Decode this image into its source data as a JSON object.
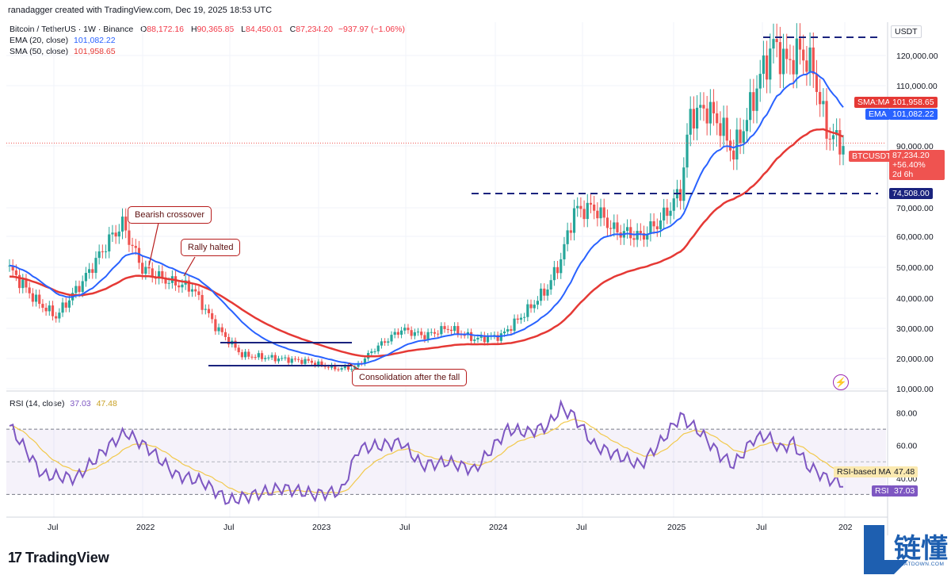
{
  "header": {
    "created_by": "ranadagger created with TradingView.com, Dec 19, 2025 18:53 UTC",
    "symbol_line": "Bitcoin / TetherUS · 1W · Binance",
    "ohlc": {
      "o_label": "O",
      "o": "88,172.16",
      "h_label": "H",
      "h": "90,365.85",
      "l_label": "L",
      "l": "84,450.01",
      "c_label": "C",
      "c": "87,234.20",
      "change": "−937.97 (−1.06%)"
    },
    "ema_line": {
      "label": "EMA (20, close)",
      "value": "101,082.22"
    },
    "sma_line": {
      "label": "SMA (50, close)",
      "value": "101,958.65"
    }
  },
  "rsi_legend": {
    "label": "RSI (14, close)",
    "rsi": "37.03",
    "ma": "47.48"
  },
  "axis": {
    "currency": "USDT",
    "price_ticks": [
      "120,000.00",
      "110,000.00",
      "90,000.00",
      "70,000.00",
      "60,000.00",
      "50,000.00",
      "40,000.00",
      "30,000.00",
      "20,000.00",
      "10,000.00"
    ],
    "rsi_ticks": [
      "80.00",
      "60.00",
      "40.00"
    ],
    "time_labels": [
      "Jul",
      "2022",
      "Jul",
      "2023",
      "Jul",
      "2024",
      "Jul",
      "2025",
      "Jul",
      "202"
    ]
  },
  "price_tags": {
    "sma": {
      "name": "SMA:MA",
      "value": "101,958.65"
    },
    "ema": {
      "name": "EMA",
      "value": "101,082.22"
    },
    "btc": {
      "name": "BTCUSDT",
      "value": "87,234.20",
      "change": "+56.40%",
      "countdown": "2d 6h"
    },
    "level": {
      "value": "74,508.00"
    },
    "rsi_ma": {
      "name": "RSI-based MA",
      "value": "47.48"
    },
    "rsi": {
      "name": "RSI",
      "value": "37.03"
    }
  },
  "annotations": {
    "bearish": "Bearish crossover",
    "rally": "Rally halted",
    "consolidation": "Consolidation after the fall"
  },
  "footer": {
    "brand": "TradingView",
    "watermark": "链懂",
    "watermark_sub": "NEATDOWN.COM"
  },
  "colors": {
    "up": "#26a69a",
    "down": "#ef5350",
    "ema": "#2962ff",
    "sma": "#e53935",
    "rsi": "#7e57c2",
    "rsi_ma": "#f2c94c",
    "level": "#1a237e"
  },
  "chart_data": {
    "type": "line",
    "series": [
      {
        "name": "EMA (20, close)",
        "x": [
          "2021-07",
          "2022-01",
          "2022-07",
          "2023-01",
          "2023-07",
          "2024-01",
          "2024-07",
          "2025-01",
          "2025-07",
          "2025-12"
        ],
        "values": [
          40000,
          54000,
          32000,
          19000,
          27000,
          32000,
          60000,
          88000,
          111000,
          101082
        ]
      },
      {
        "name": "SMA (50, close)",
        "x": [
          "2021-07",
          "2022-01",
          "2022-07",
          "2023-01",
          "2023-07",
          "2024-01",
          "2024-07",
          "2025-01",
          "2025-07",
          "2025-12"
        ],
        "values": [
          28000,
          44000,
          42000,
          24000,
          23000,
          30000,
          47000,
          74000,
          99000,
          101959
        ]
      },
      {
        "name": "RSI (14, close)",
        "x": [
          "2021-07",
          "2022-01",
          "2022-07",
          "2023-01",
          "2023-07",
          "2024-01",
          "2024-07",
          "2025-01",
          "2025-07",
          "2025-12"
        ],
        "values": [
          45,
          62,
          30,
          34,
          58,
          68,
          50,
          68,
          70,
          37
        ]
      }
    ],
    "price_ylim": [
      10000,
      125000
    ],
    "rsi_ylim": [
      20,
      90
    ],
    "levels": [
      {
        "label": "74,508.00",
        "value": 74508
      },
      {
        "value": 126000
      }
    ],
    "last_close": 87234.2
  }
}
